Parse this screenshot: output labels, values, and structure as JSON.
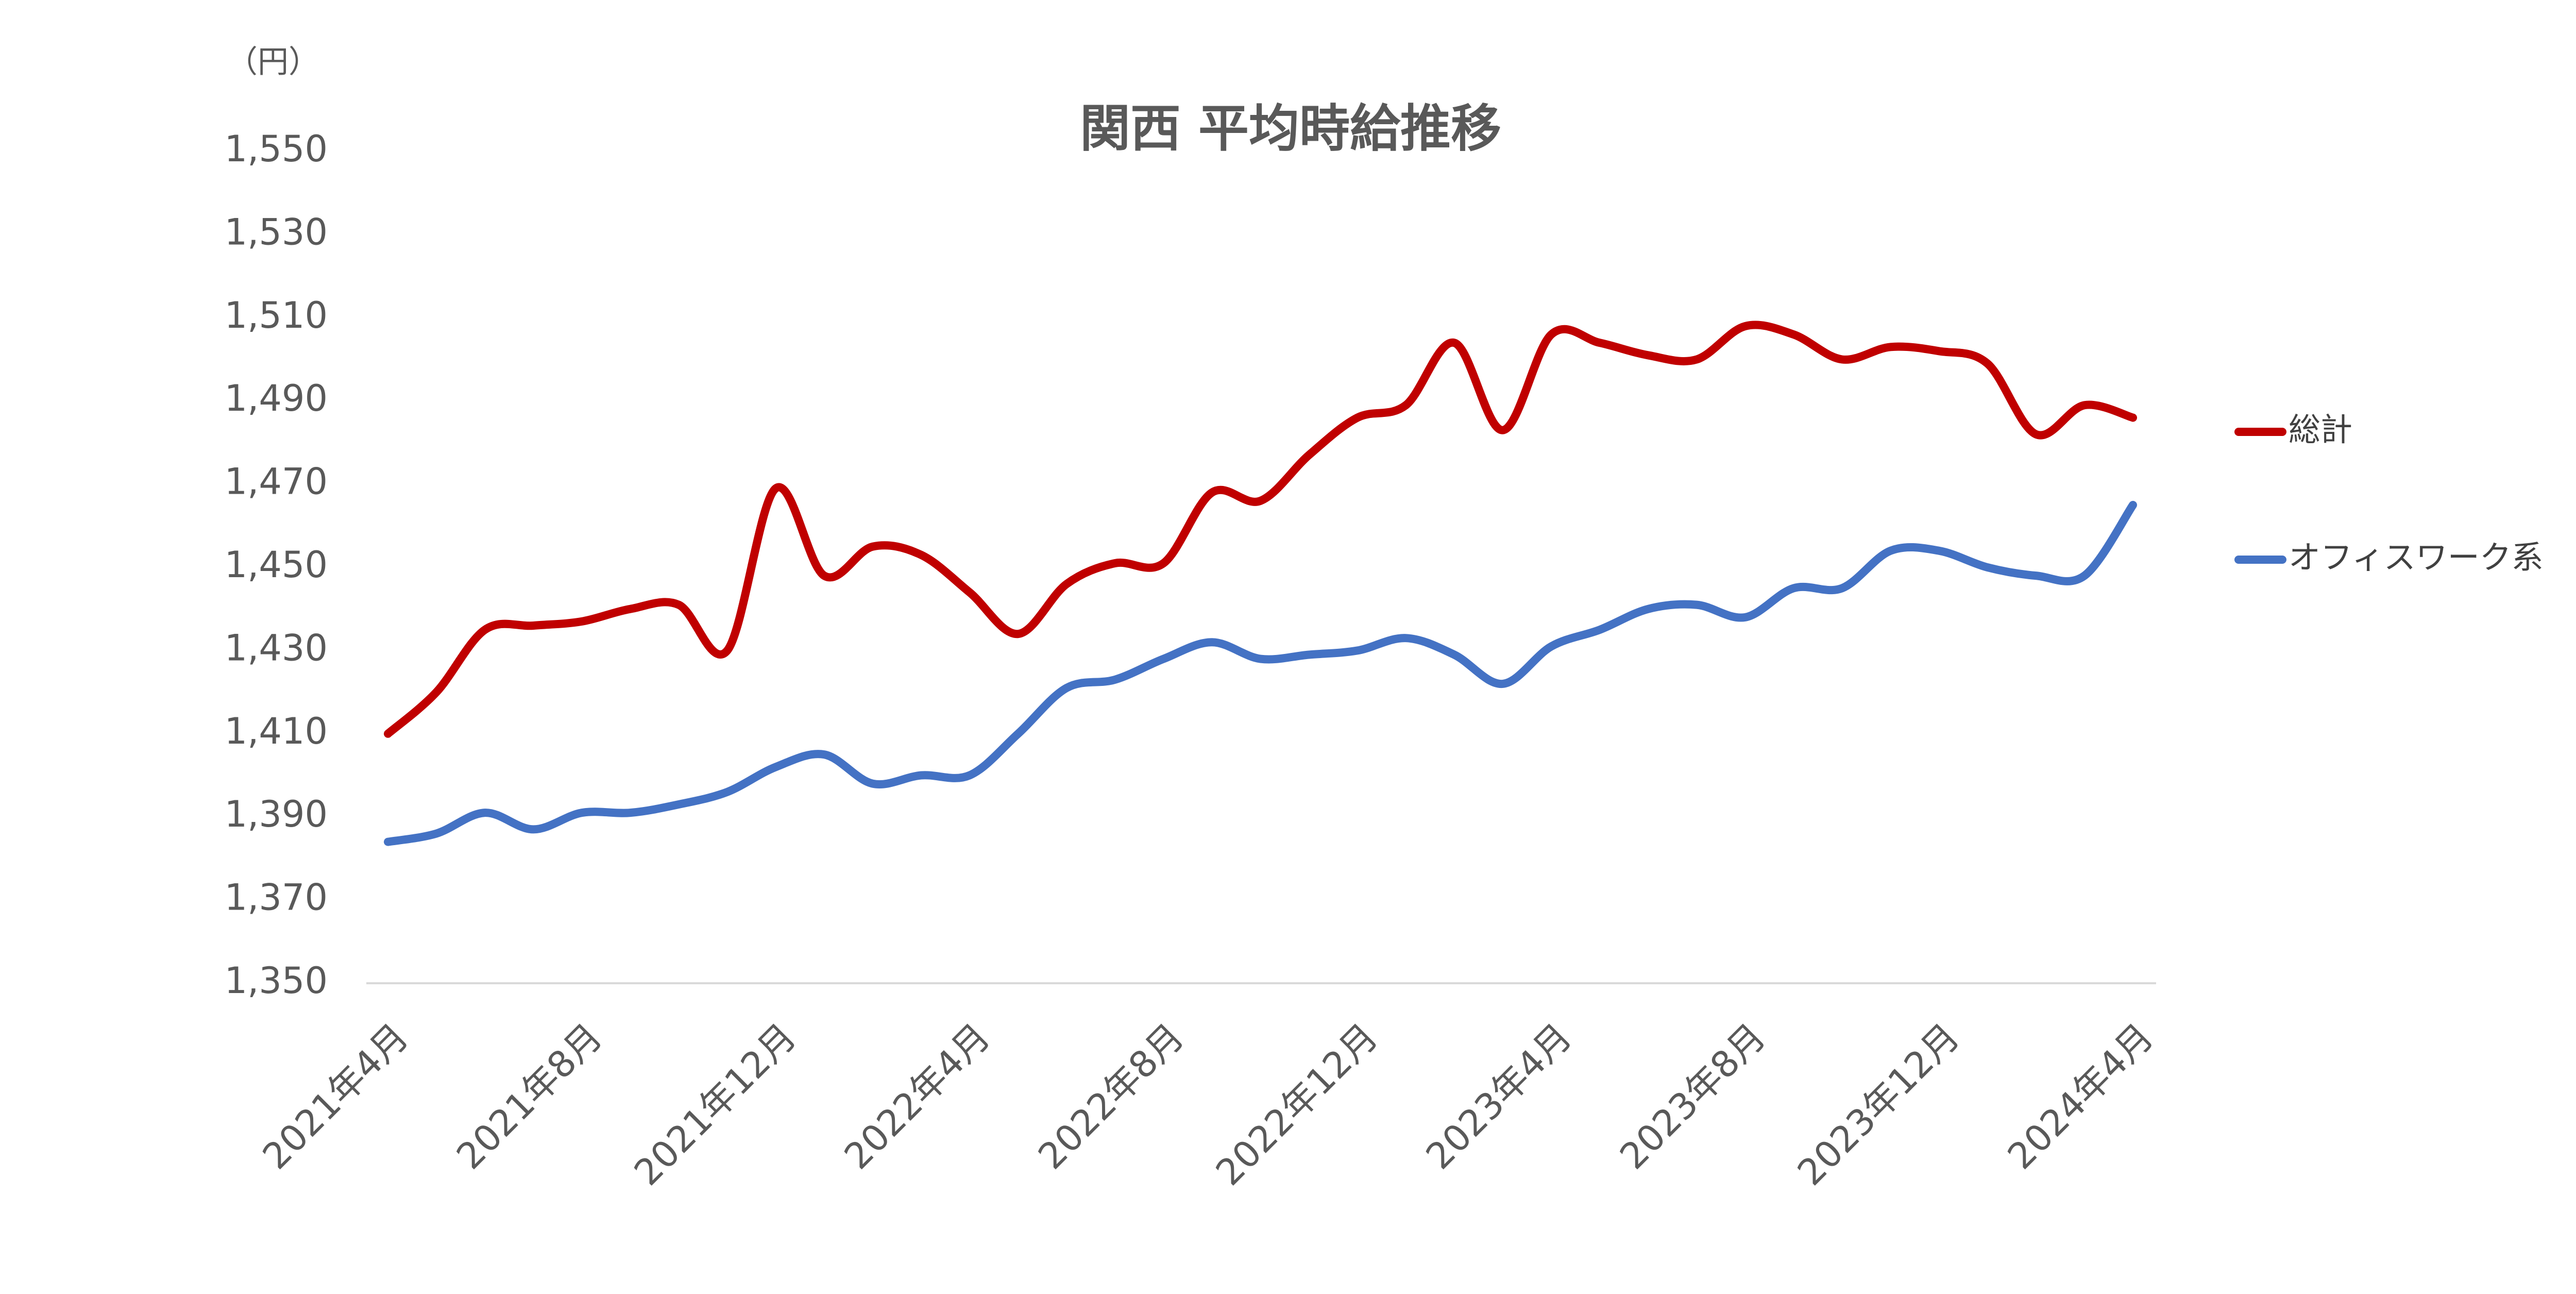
{
  "chart_data": {
    "type": "line",
    "title": "関西 平均時給推移",
    "y_unit_label": "（円）",
    "categories": [
      "2021年4月",
      null,
      null,
      null,
      "2021年8月",
      null,
      null,
      null,
      "2021年12月",
      null,
      null,
      null,
      "2022年4月",
      null,
      null,
      null,
      "2022年8月",
      null,
      null,
      null,
      "2022年12月",
      null,
      null,
      null,
      "2023年4月",
      null,
      null,
      null,
      "2023年8月",
      null,
      null,
      null,
      "2023年12月",
      null,
      null,
      null,
      "2024年4月"
    ],
    "series": [
      {
        "name": "総計",
        "color": "#c00000",
        "values": [
          1410,
          1420,
          1435,
          1436,
          1437,
          1440,
          1441,
          1430,
          1469,
          1448,
          1455,
          1453,
          1444,
          1434,
          1446,
          1451,
          1451,
          1468,
          1466,
          1477,
          1486,
          1489,
          1504,
          1483,
          1506,
          1504,
          1501,
          1500,
          1508,
          1506,
          1500,
          1503,
          1502,
          1499,
          1482,
          1489,
          1486
        ]
      },
      {
        "name": "オフィスワーク系",
        "color": "#4472c4",
        "values": [
          1384,
          1386,
          1391,
          1387,
          1391,
          1391,
          1393,
          1396,
          1402,
          1405,
          1398,
          1400,
          1400,
          1410,
          1421,
          1423,
          1428,
          1432,
          1428,
          1429,
          1430,
          1433,
          1429,
          1422,
          1431,
          1435,
          1440,
          1441,
          1438,
          1445,
          1445,
          1454,
          1454,
          1450,
          1448,
          1448,
          1465
        ]
      }
    ],
    "ylim": [
      1350,
      1550
    ],
    "yticks": [
      {
        "value": 1350,
        "label": "1,350"
      },
      {
        "value": 1370,
        "label": "1,370"
      },
      {
        "value": 1390,
        "label": "1,390"
      },
      {
        "value": 1410,
        "label": "1,410"
      },
      {
        "value": 1430,
        "label": "1,430"
      },
      {
        "value": 1450,
        "label": "1,450"
      },
      {
        "value": 1470,
        "label": "1,470"
      },
      {
        "value": 1490,
        "label": "1,490"
      },
      {
        "value": 1510,
        "label": "1,510"
      },
      {
        "value": 1530,
        "label": "1,530"
      },
      {
        "value": 1550,
        "label": "1,550"
      }
    ],
    "grid": false,
    "smooth": true,
    "legend": "right"
  }
}
